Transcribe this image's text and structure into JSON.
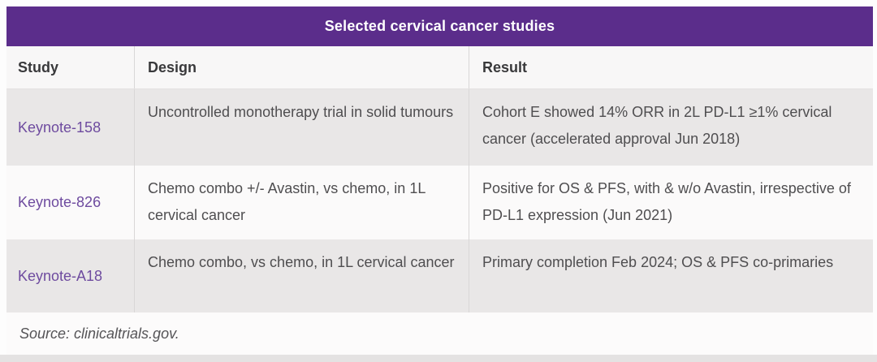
{
  "title": "Selected cervical cancer studies",
  "columns": {
    "study": "Study",
    "design": "Design",
    "result": "Result"
  },
  "rows": [
    {
      "study": "Keynote-158",
      "design": "Uncontrolled monotherapy trial in solid tumours",
      "result": "Cohort E showed 14% ORR in 2L PD-L1 ≥1% cervical cancer (accelerated approval Jun 2018)"
    },
    {
      "study": "Keynote-826",
      "design": "Chemo combo +/- Avastin, vs chemo, in 1L cervical cancer",
      "result": "Positive for OS & PFS, with & w/o Avastin, irrespective of PD-L1 expression (Jun 2021)"
    },
    {
      "study": "Keynote-A18",
      "design": "Chemo combo, vs chemo, in 1L cervical cancer",
      "result": "Primary completion Feb 2024; OS & PFS co-primaries"
    }
  ],
  "source": "Source: clinicaltrials.gov.",
  "colors": {
    "title_bar_bg": "#5b2d8b",
    "study_link": "#6e4b9f",
    "shaded_row_bg": "#e9e7e7",
    "header_row_bg": "#f8f7f7"
  }
}
